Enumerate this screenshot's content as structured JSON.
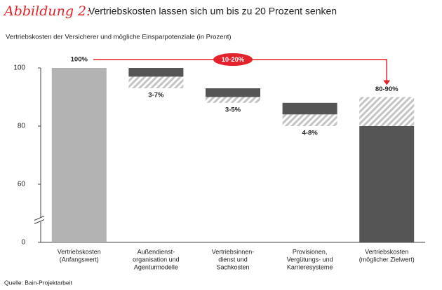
{
  "chart_data": {
    "type": "waterfall",
    "title_prefix": "Abbildung 2:",
    "title": "Vertriebskosten lassen sich um bis zu 20 Prozent senken",
    "subtitle": "Vertriebskosten der Versicherer und mögliche Einsparpotenziale (in Prozent)",
    "source": "Quelle: Bain-Projektarbeit",
    "categories": [
      [
        "Vertriebskosten",
        "(Anfangswert)"
      ],
      [
        "Außendienst-",
        "organisation und",
        "Agenturmodelle"
      ],
      [
        "Vertriebsinnen-",
        "dienst und",
        "Sachkosten"
      ],
      [
        "Provisionen,",
        "Vergütungs- und",
        "Karrieresysteme"
      ],
      [
        "Vertriebskosten",
        "(möglicher Zielwert)"
      ]
    ],
    "values": [
      100,
      [
        3,
        7
      ],
      [
        3,
        5
      ],
      [
        4,
        8
      ],
      [
        80,
        90
      ]
    ],
    "value_labels": [
      "100%",
      "3-7%",
      "3-5%",
      "4-8%",
      "80-90%"
    ],
    "annotation": {
      "label": "10-20%",
      "values": [
        10,
        20
      ]
    },
    "ylim": [
      0,
      100
    ],
    "yticks": [
      0,
      60,
      80,
      100
    ],
    "axis_break": [
      0,
      60
    ],
    "start_color": "#b3b3b3",
    "color": "#555555",
    "range_color": "#c4c4c4",
    "annotation_color": "#e3222b"
  }
}
